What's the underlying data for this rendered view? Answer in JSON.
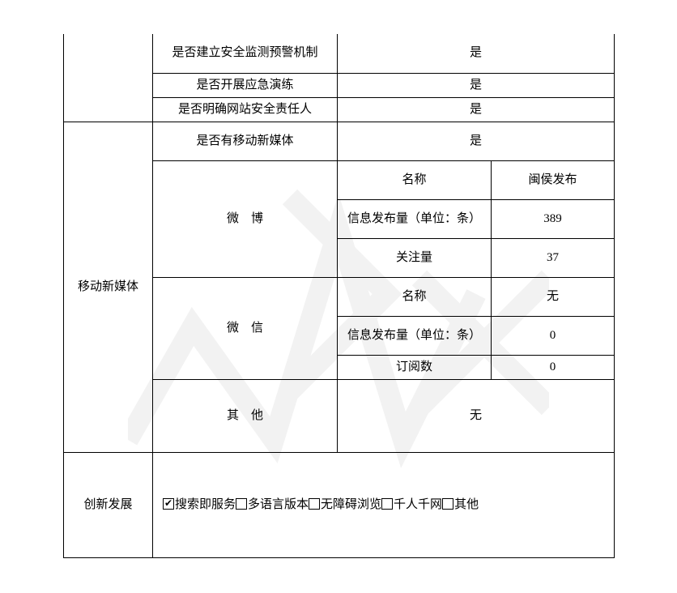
{
  "security": {
    "row1_label": "是否建立安全监测预警机制",
    "row1_value": "是",
    "row2_label": "是否开展应急演练",
    "row2_value": "是",
    "row3_label": "是否明确网站安全责任人",
    "row3_value": "是"
  },
  "mobile": {
    "section_label": "移动新媒体",
    "has_label": "是否有移动新媒体",
    "has_value": "是",
    "weibo": {
      "label": "微　博",
      "name_label": "名称",
      "name_value": "闽侯发布",
      "posts_label": "信息发布量（单位：条）",
      "posts_value": "389",
      "follow_label": "关注量",
      "follow_value": "37"
    },
    "wechat": {
      "label": "微　信",
      "name_label": "名称",
      "name_value": "无",
      "posts_label": "信息发布量（单位：条）",
      "posts_value": "0",
      "sub_label": "订阅数",
      "sub_value": "0"
    },
    "other": {
      "label": "其　他",
      "value": "无"
    }
  },
  "innovation": {
    "label": "创新发展",
    "options": [
      {
        "text": "搜索即服务",
        "checked": true
      },
      {
        "text": "多语言版本",
        "checked": false
      },
      {
        "text": "无障碍浏览",
        "checked": false
      },
      {
        "text": "千人千网",
        "checked": false
      },
      {
        "text": "其他",
        "checked": false
      }
    ]
  },
  "style": {
    "border_color": "#000000",
    "text_color": "#000000",
    "bg_color": "#ffffff",
    "font_family": "SimSun",
    "font_size_pt": 11,
    "watermark_color": "#888888",
    "watermark_opacity": 0.1
  }
}
